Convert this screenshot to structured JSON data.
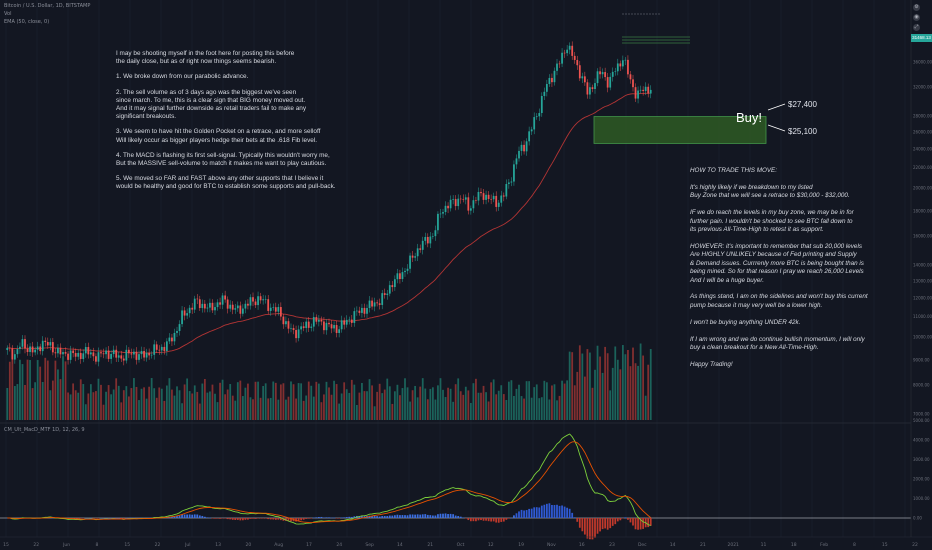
{
  "header": {
    "symbol_line": "Bitcoin / U.S. Dollar, 1D, BITSTAMP",
    "indicator_1": "Vol",
    "indicator_2": "EMA (50, close, 0)",
    "macd_legend": "CM_Ult_MacD_MTF 1D, 12, 26, 9"
  },
  "notes": {
    "main": [
      "I may be shooting myself in the foot here for posting this before\nthe daily close, but as of right now things seems bearish.",
      "1. We broke down from our parabolic advance.",
      "2. The sell volume as of 3 days ago was the biggest we've seen\nsince march. To me, this is a clear sign that BIG money moved out.\nAnd it may signal further downside as retail traders fail to make any\nsignificant breakouts.",
      "3. We seem to have hit the Golden Pocket on a retrace, and more selloff\nWill likely occur as bigger players hedge their bets at the .618 Fib level.",
      "4. The MACD is flashing its first sell-signal. Typically this wouldn't worry me,\nBut the MASSIVE sell-volume to match it makes me want to play cautious.",
      "5. We moved so FAR and FAST above any other supports that I believe it\nwould be healthy and good for BTC to establish some supports and pull-back."
    ],
    "right": [
      "HOW TO TRADE THIS MOVE:",
      "It's highly likely if we breakdown to my listed\nBuy Zone that we will see a retrace to $30,000 - $32,000.",
      "IF we do reach the levels in my buy zone, we may be in for\nfurther pain. I wouldn't be shocked to see BTC fall down to\nits previous All-Time-High to retest it as support.",
      "HOWEVER: it's important to remember that sub 20,000 levels\nAre HIGHLY UNLIKELY because of Fed printing and Supply\n& Demand issues. Currrenly more BTC is being bought than is\nbeing mined. So for that reason I pray we reach 26,000 Levels\nAnd I will be a huge buyer.",
      "As things stand, I am on the sidelines and won't buy this current\npump because it may very well be a lower high.",
      "I won't be buying anything UNDER 42k.",
      "If I am wrong and we do continue bullish momentum, I will only\nbuy a clean breakout for a New All-Time-High.",
      "Happy Trading!"
    ]
  },
  "buy_zone": {
    "label": "Buy!",
    "upper_label": "$27,400",
    "lower_label": "$25,100",
    "fill_color": "#2e5a24",
    "border_color": "#4caf50"
  },
  "price_tag": {
    "text": "31468.13"
  },
  "icons": [
    "settings-icon",
    "camera-icon",
    "fullscreen-icon"
  ],
  "chart_data": {
    "type": "candlestick",
    "period": "1D",
    "y_axis_ticks": [
      "40000.00",
      "36000.00",
      "32000.00",
      "28000.00",
      "26000.00",
      "24000.00",
      "22000.00",
      "20000.00",
      "18000.00",
      "16000.00",
      "14000.00",
      "13000.00",
      "12000.00",
      "11000.00",
      "10000.00",
      "9000.00",
      "8000.00",
      "7000.00"
    ],
    "x_axis_ticks": [
      "15",
      "22",
      "Jun",
      "8",
      "15",
      "22",
      "Jul",
      "13",
      "20",
      "Aug",
      "17",
      "24",
      "Sep",
      "14",
      "21",
      "Oct",
      "12",
      "19",
      "Nov",
      "16",
      "23",
      "Dec",
      "14",
      "21",
      "2021",
      "11",
      "18",
      "Feb",
      "8",
      "15",
      "22"
    ],
    "macd_y_ticks": [
      "5000.00",
      "4000.00",
      "3000.00",
      "2000.00",
      "1000.00",
      "0.00"
    ],
    "series": [
      {
        "name": "BTC/USD",
        "kind": "candles",
        "close_path": [
          9400,
          9200,
          9700,
          9500,
          9300,
          9800,
          9600,
          9400,
          9200,
          9300,
          9100,
          9400,
          9200,
          9150,
          9300,
          9250,
          9100,
          9200,
          9300,
          9150,
          9250,
          9400,
          9500,
          9700,
          10200,
          11000,
          11400,
          11800,
          11600,
          11400,
          11700,
          11900,
          11500,
          11300,
          11600,
          11800,
          12000,
          11700,
          11400,
          11200,
          10500,
          10200,
          10400,
          10600,
          10800,
          10700,
          10500,
          10400,
          10600,
          10900,
          11200,
          11400,
          11600,
          11800,
          12100,
          12900,
          13200,
          13800,
          14500,
          15300,
          15700,
          16200,
          18000,
          18500,
          18800,
          19200,
          18200,
          19100,
          19500,
          19000,
          18700,
          19400,
          21000,
          23500,
          24500,
          26500,
          28900,
          32000,
          34000,
          36000,
          39000,
          36500,
          34000,
          31000,
          33000,
          34500,
          32500,
          35000,
          36500,
          33500,
          30500,
          32000,
          31500
        ]
      },
      {
        "name": "EMA 50",
        "kind": "line",
        "color": "#b23434"
      },
      {
        "name": "Volume",
        "kind": "bars"
      },
      {
        "name": "MACD",
        "kind": "line",
        "color": "#7cd03b"
      },
      {
        "name": "Signal",
        "kind": "line",
        "color": "#e65100"
      },
      {
        "name": "Histogram",
        "kind": "bars"
      }
    ],
    "buy_zone_range": [
      25100,
      27400
    ]
  }
}
